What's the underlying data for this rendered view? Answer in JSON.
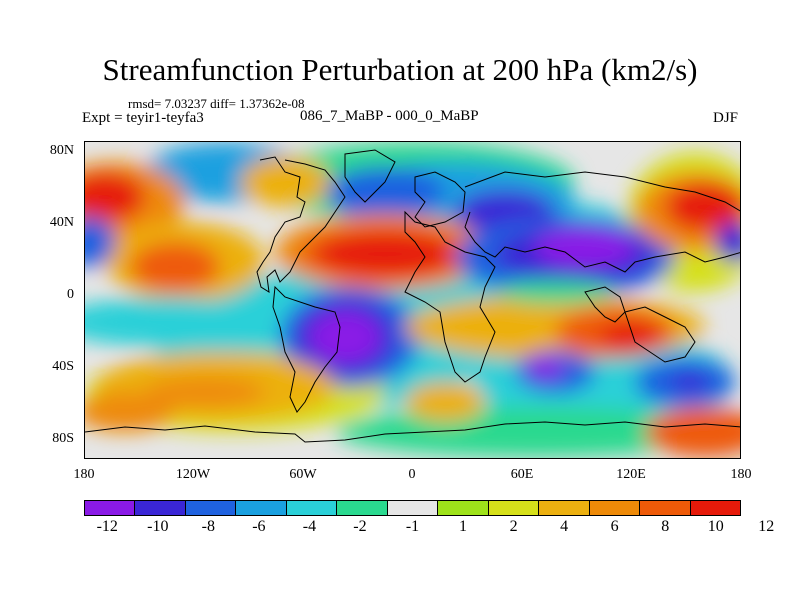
{
  "figure": {
    "title": "Streamfunction Perturbation at 200 hPa (km2/s)",
    "stats": "rmsd= 7.03237 diff= 1.37362e-08",
    "expt": "Expt = teyir1-teyfa3",
    "period": "086_7_MaBP - 000_0_MaBP",
    "season": "DJF"
  },
  "axes": {
    "lat_labels": [
      "80N",
      "40N",
      "0",
      "40S",
      "80S"
    ],
    "lon_labels": [
      "180",
      "120W",
      "60W",
      "0",
      "60E",
      "120E",
      "180"
    ]
  },
  "colorbar": {
    "colors": [
      "#8a1ae6",
      "#3a26d6",
      "#1f62e0",
      "#1aa0e0",
      "#2ad0d8",
      "#2ad98f",
      "#e6e6e6",
      "#9ee21a",
      "#d6e01a",
      "#ecb010",
      "#ee8a08",
      "#ee5a08",
      "#e61a0a"
    ],
    "labels": [
      "-12",
      "-10",
      "-8",
      "-6",
      "-4",
      "-2",
      "-1",
      "1",
      "2",
      "4",
      "6",
      "8",
      "10",
      "12"
    ]
  }
}
